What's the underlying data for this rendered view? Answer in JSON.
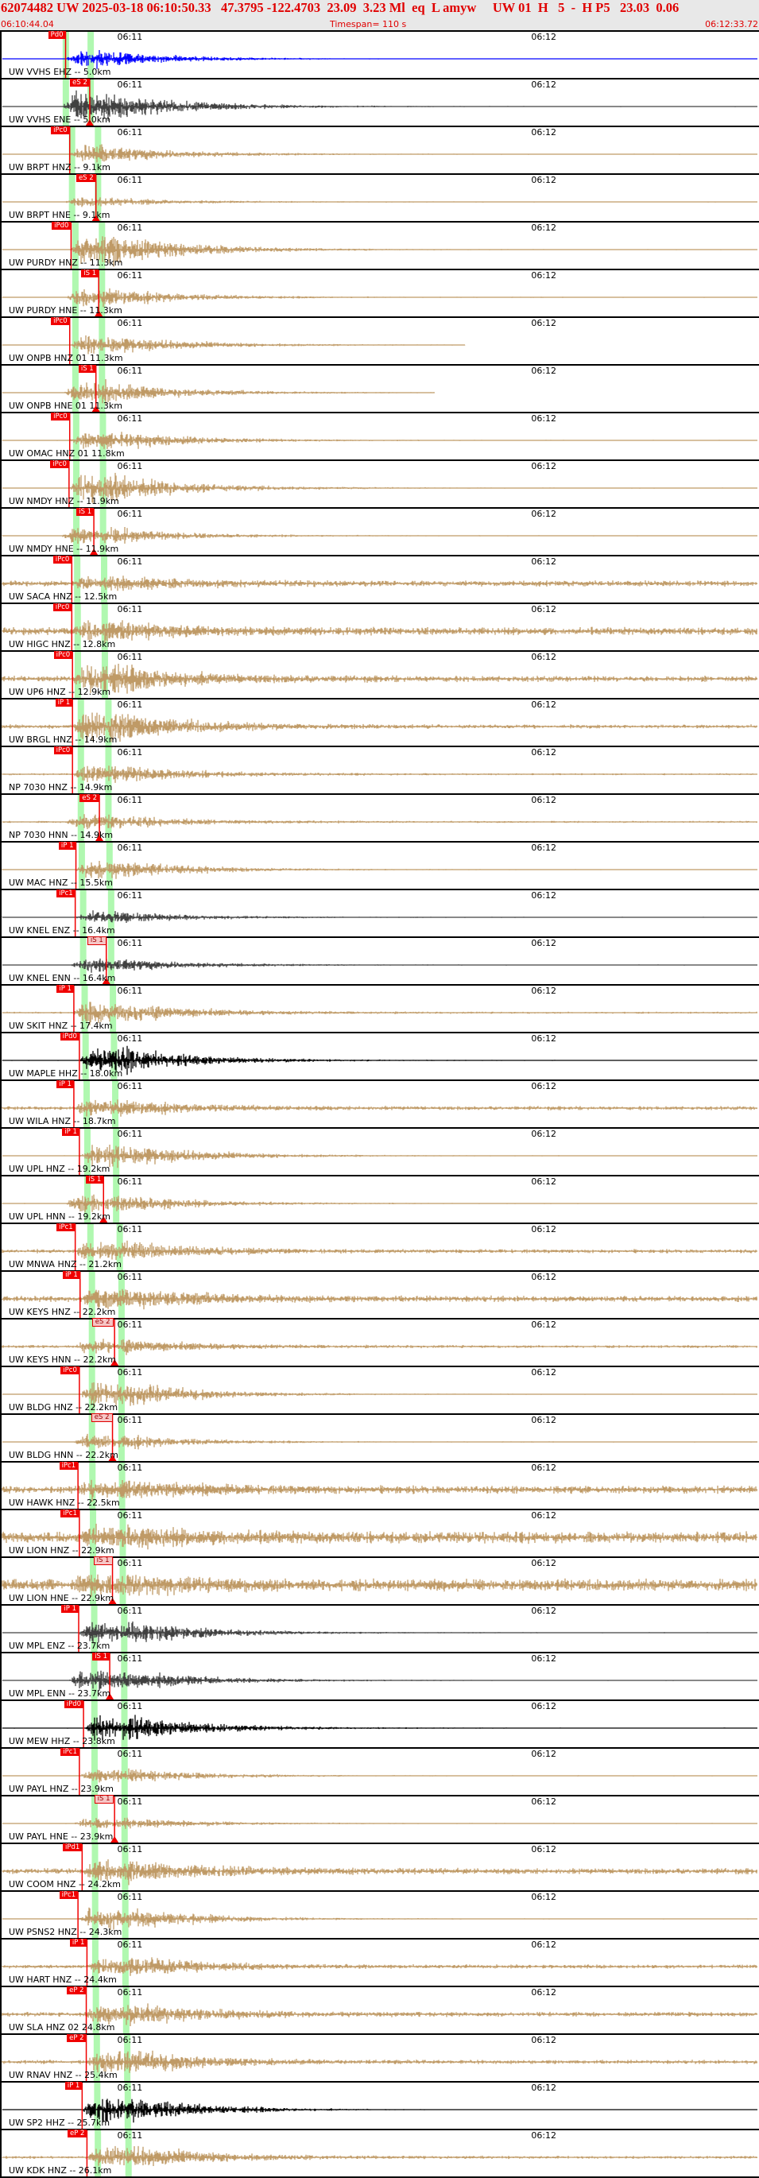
{
  "header": {
    "title": "62074482 UW 2025-03-18 06:10:50.33   47.3795 -122.4703  23.09  3.23 Ml  eq  L amyw     UW 01  H   5  -  H P5   23.03  0.06",
    "start_time": "06:10:44.04",
    "timespan": "Timespan= 110 s",
    "end_time": "06:12:33.72"
  },
  "axis": {
    "tick_labels": [
      "06:11",
      "06:12"
    ],
    "tick_interval_s": 5
  },
  "colors": {
    "header_text": "#e00000",
    "pick": "#f00000",
    "window_band": "#b0f8b0",
    "blue": "#0000ff",
    "tan": "#bf9a66",
    "gray": "#404040",
    "black": "#000000"
  },
  "traces": [
    {
      "label": "UW VVHS EHZ -- 5.0km",
      "dist": 5.0,
      "color": "blue",
      "pick": "Pd0",
      "pick_time": "06:10:53.2"
    },
    {
      "label": "UW VVHS ENE -- 5.0km",
      "dist": 5.0,
      "color": "gray",
      "pick": "eS 2",
      "pick_time": "06:10:56.7"
    },
    {
      "label": "UW BRPT HNZ -- 9.1km",
      "dist": 9.1,
      "color": "tan",
      "pick": "iPc0",
      "pick_time": "06:10:53.8"
    },
    {
      "label": "UW BRPT HNE -- 9.1km",
      "dist": 9.1,
      "color": "tan",
      "pick": "eS 2",
      "pick_time": "06:10:57.6"
    },
    {
      "label": "UW PURDY HNZ -- 11.3km",
      "dist": 11.3,
      "color": "tan",
      "pick": "iPd0",
      "pick_time": "06:10:54.0"
    },
    {
      "label": "UW PURDY HNE -- 11.3km",
      "dist": 11.3,
      "color": "tan",
      "pick": "iS 1",
      "pick_time": "06:10:58.0"
    },
    {
      "label": "UW ONPB HNZ 01 11.3km",
      "dist": 11.3,
      "color": "tan",
      "pick": "iPc0",
      "pick_time": "06:10:53.8",
      "data_end": "06:11:51.1"
    },
    {
      "label": "UW ONPB HNE 01 11.3km",
      "dist": 11.3,
      "color": "tan",
      "pick": "iS 1",
      "pick_time": "06:10:57.6",
      "data_end": "06:11:46.7"
    },
    {
      "label": "UW OMAC HNZ 01 11.8km",
      "dist": 11.8,
      "color": "tan",
      "pick": "iPc0",
      "pick_time": "06:10:53.8"
    },
    {
      "label": "UW NMDY HNZ -- 11.9km",
      "dist": 11.9,
      "color": "tan",
      "pick": "iPc0",
      "pick_time": "06:10:53.7"
    },
    {
      "label": "UW NMDY HNE -- 11.9km",
      "dist": 11.9,
      "color": "tan",
      "pick": "iS 1",
      "pick_time": "06:10:57.3"
    },
    {
      "label": "UW SACA HNZ -- 12.5km",
      "dist": 12.5,
      "color": "tan",
      "pick": "iPc0",
      "pick_time": "06:10:54.1"
    },
    {
      "label": "UW HIGC HNZ -- 12.8km",
      "dist": 12.8,
      "color": "tan",
      "pick": "iPc0",
      "pick_time": "06:10:54.1"
    },
    {
      "label": "UW UP6 HNZ -- 12.9km",
      "dist": 12.9,
      "color": "tan",
      "pick": "iPc0",
      "pick_time": "06:10:54.2"
    },
    {
      "label": "UW BRGL HNZ -- 14.9km",
      "dist": 14.9,
      "color": "tan",
      "pick": "iP 1",
      "pick_time": "06:10:54.2"
    },
    {
      "label": "NP 7030 HNZ -- 14.9km",
      "dist": 14.9,
      "color": "tan",
      "pick": "iPc0",
      "pick_time": "06:10:54.2"
    },
    {
      "label": "NP 7030 HNN -- 14.9km",
      "dist": 14.9,
      "color": "tan",
      "pick": "eS 2",
      "pick_time": "06:10:58.1"
    },
    {
      "label": "UW MAC HNZ -- 15.5km",
      "dist": 15.5,
      "color": "tan",
      "pick": "iP 1",
      "pick_time": "06:10:54.7"
    },
    {
      "label": "UW KNEL ENZ -- 16.4km",
      "dist": 16.4,
      "color": "gray",
      "pick": "iPc1",
      "pick_time": "06:10:54.6"
    },
    {
      "label": "UW KNEL ENN -- 16.4km",
      "dist": 16.4,
      "color": "gray",
      "pick": "iS 1",
      "pick_time": "06:10:59.1",
      "pick_style": "light"
    },
    {
      "label": "UW SKIT HNZ -- 17.4km",
      "dist": 17.4,
      "color": "tan",
      "pick": "iP 1",
      "pick_time": "06:10:54.4"
    },
    {
      "label": "UW MAPLE HHZ -- 18.0km",
      "dist": 18.0,
      "color": "black",
      "pick": "iPd0",
      "pick_time": "06:10:55.2"
    },
    {
      "label": "UW WILA HNZ -- 18.7km",
      "dist": 18.7,
      "color": "tan",
      "pick": "iP 1",
      "pick_time": "06:10:54.4"
    },
    {
      "label": "UW UPL HNZ -- 19.2km",
      "dist": 19.2,
      "color": "tan",
      "pick": "iP 1",
      "pick_time": "06:10:55.2"
    },
    {
      "label": "UW UPL HNN -- 19.2km",
      "dist": 19.2,
      "color": "tan",
      "pick": "iS 1",
      "pick_time": "06:10:58.7"
    },
    {
      "label": "UW MNWA HNZ -- 21.2km",
      "dist": 21.2,
      "color": "tan",
      "pick": "iPc1",
      "pick_time": "06:10:54.6"
    },
    {
      "label": "UW KEYS HNZ -- 22.2km",
      "dist": 22.2,
      "color": "tan",
      "pick": "iP 1",
      "pick_time": "06:10:55.3"
    },
    {
      "label": "UW KEYS HNN -- 22.2km",
      "dist": 22.2,
      "color": "tan",
      "pick": "eS 2",
      "pick_time": "06:11:00.3",
      "pick_style": "light"
    },
    {
      "label": "UW BLDG HNZ -- 22.2km",
      "dist": 22.2,
      "color": "tan",
      "pick": "iPc0",
      "pick_time": "06:10:55.2"
    },
    {
      "label": "UW BLDG HNN -- 22.2km",
      "dist": 22.2,
      "color": "tan",
      "pick": "eS 2",
      "pick_time": "06:11:00.0",
      "pick_style": "light"
    },
    {
      "label": "UW HAWK HNZ -- 22.5km",
      "dist": 22.5,
      "color": "tan",
      "pick": "iPc1",
      "pick_time": "06:10:55.0"
    },
    {
      "label": "UW LION HNZ -- 22.9km",
      "dist": 22.9,
      "color": "tan",
      "pick": "iPc1",
      "pick_time": "06:10:55.2"
    },
    {
      "label": "UW LION HNE -- 22.9km",
      "dist": 22.9,
      "color": "tan",
      "pick": "iS 1",
      "pick_time": "06:11:00.0",
      "pick_style": "light"
    },
    {
      "label": "UW MPL ENZ -- 23.7km",
      "dist": 23.7,
      "color": "gray",
      "pick": "iP 1",
      "pick_time": "06:10:55.1"
    },
    {
      "label": "UW MPL ENN -- 23.7km",
      "dist": 23.7,
      "color": "gray",
      "pick": "iS 1",
      "pick_time": "06:10:59.6"
    },
    {
      "label": "UW MEW HHZ -- 23.8km",
      "dist": 23.8,
      "color": "black",
      "pick": "iPd0",
      "pick_time": "06:10:55.8"
    },
    {
      "label": "UW PAYL HNZ -- 23.9km",
      "dist": 23.9,
      "color": "tan",
      "pick": "iPc1",
      "pick_time": "06:10:55.2"
    },
    {
      "label": "UW PAYL HNE -- 23.9km",
      "dist": 23.9,
      "color": "tan",
      "pick": "iS 1",
      "pick_time": "06:11:00.3",
      "pick_style": "light"
    },
    {
      "label": "UW COOM HNZ -- 24.2km",
      "dist": 24.2,
      "color": "tan",
      "pick": "iPd1",
      "pick_time": "06:10:55.6"
    },
    {
      "label": "UW PSNS2 HNZ -- 24.3km",
      "dist": 24.3,
      "color": "tan",
      "pick": "iPc1",
      "pick_time": "06:10:55.0"
    },
    {
      "label": "UW HART HNZ -- 24.4km",
      "dist": 24.4,
      "color": "tan",
      "pick": "iP 1",
      "pick_time": "06:10:56.3"
    },
    {
      "label": "UW SLA HNZ 02 24.8km",
      "dist": 24.8,
      "color": "tan",
      "pick": "eP 2",
      "pick_time": "06:10:56.2"
    },
    {
      "label": "UW RNAV HNZ -- 25.4km",
      "dist": 25.4,
      "color": "tan",
      "pick": "eP 2",
      "pick_time": "06:10:56.2"
    },
    {
      "label": "UW SP2 HHZ -- 25.7km",
      "dist": 25.7,
      "color": "black",
      "pick": "iP 1",
      "pick_time": "06:10:55.6"
    },
    {
      "label": "UW KDK HNZ -- 26.1km",
      "dist": 26.1,
      "color": "tan",
      "pick": "eP 2",
      "pick_time": "06:10:56.3"
    }
  ]
}
